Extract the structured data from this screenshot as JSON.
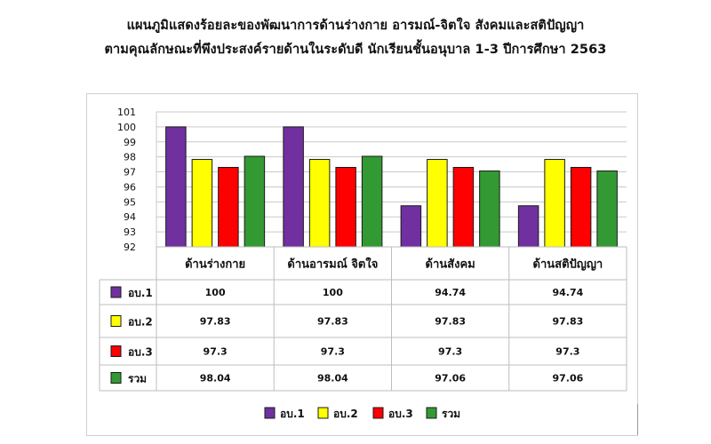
{
  "title_line1": "แผนภูมิแสดงร้อยละของพัฒนาการด้านร่างกาย อารมณ์-จิตใจ สังคมและสติปัญญา",
  "title_line2": "ตามคุณลักษณะที่พึงประสงค์รายด้านในระดับดี  นักเรียนชั้นอนุบาล 1-3 ปีการศึกษา 2563",
  "chart_data": {
    "type": "bar",
    "categories": [
      "ด้านร่างกาย",
      "ด้านอารมณ์ จิตใจ",
      "ด้านสังคม",
      "ด้านสติปัญญา"
    ],
    "series": [
      {
        "name": "อบ.1",
        "color": "#7030A0",
        "values": [
          100,
          100,
          94.74,
          94.74
        ],
        "labels": [
          "100",
          "100",
          "94.74",
          "94.74"
        ]
      },
      {
        "name": "อบ.2",
        "color": "#FFFF00",
        "values": [
          97.83,
          97.83,
          97.83,
          97.83
        ],
        "labels": [
          "97.83",
          "97.83",
          "97.83",
          "97.83"
        ]
      },
      {
        "name": "อบ.3",
        "color": "#FF0000",
        "values": [
          97.3,
          97.3,
          97.3,
          97.3
        ],
        "labels": [
          "97.3",
          "97.3",
          "97.3",
          "97.3"
        ]
      },
      {
        "name": "รวม",
        "color": "#339933",
        "values": [
          98.04,
          98.04,
          97.06,
          97.06
        ],
        "labels": [
          "98.04",
          "98.04",
          "97.06",
          "97.06"
        ]
      }
    ],
    "yticks": [
      "92",
      "93",
      "94",
      "95",
      "96",
      "97",
      "98",
      "99",
      "100",
      "101"
    ],
    "ylim": [
      92,
      101
    ],
    "grid": "horizontal",
    "legend": "bottom",
    "data_table": true
  }
}
